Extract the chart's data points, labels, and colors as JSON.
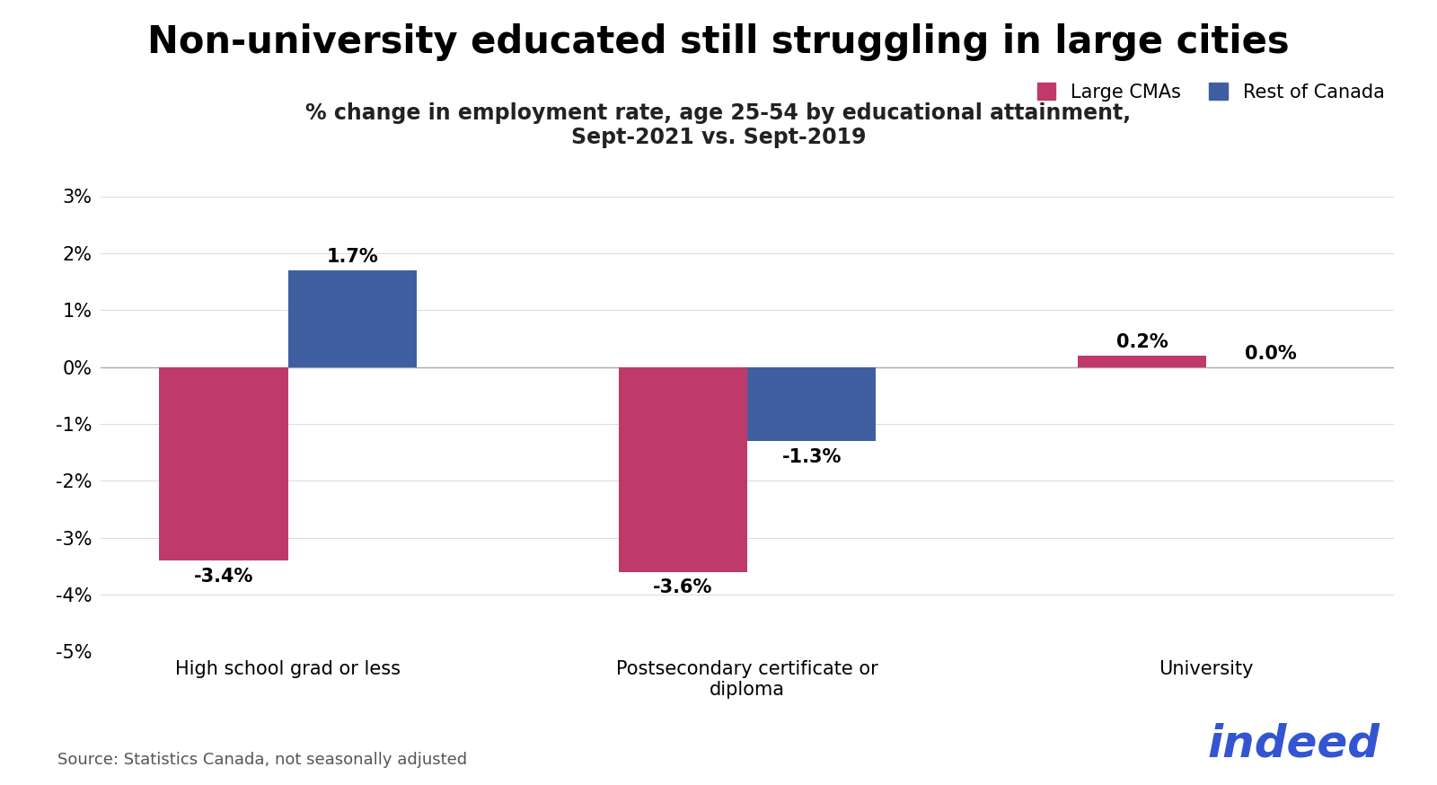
{
  "title": "Non-university educated still struggling in large cities",
  "subtitle": "% change in employment rate, age 25-54 by educational attainment,\nSept-2021 vs. Sept-2019",
  "categories": [
    "High school grad or less",
    "Postsecondary certificate or\ndiploma",
    "University"
  ],
  "large_cmas": [
    -3.4,
    -3.6,
    0.2
  ],
  "rest_of_canada": [
    1.7,
    -1.3,
    0.0
  ],
  "large_cmas_color": "#c0396b",
  "rest_of_canada_color": "#3f5fa0",
  "ylim": [
    -5,
    3
  ],
  "yticks": [
    -5,
    -4,
    -3,
    -2,
    -1,
    0,
    1,
    2,
    3
  ],
  "source_text": "Source: Statistics Canada, not seasonally adjusted",
  "legend_labels": [
    "Large CMAs",
    "Rest of Canada"
  ],
  "indeed_color": "#3355d1",
  "background_color": "#ffffff",
  "bar_width": 0.28,
  "title_fontsize": 30,
  "subtitle_fontsize": 17,
  "tick_fontsize": 15,
  "xlabel_fontsize": 15,
  "annotation_fontsize": 15,
  "source_fontsize": 13,
  "legend_fontsize": 15
}
